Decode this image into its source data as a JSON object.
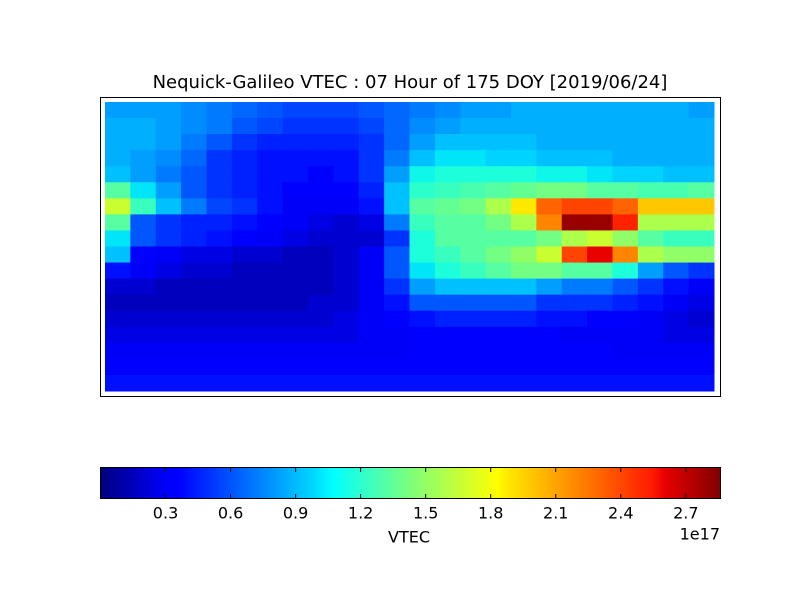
{
  "chart_data": {
    "type": "heatmap",
    "title": "Nequick-Galileo VTEC : 07 Hour of 175 DOY [2019/06/24]",
    "colormap": "jet",
    "values": [
      [
        0.8,
        0.8,
        0.8,
        0.75,
        0.7,
        0.65,
        0.6,
        0.55,
        0.55,
        0.55,
        0.6,
        0.65,
        0.7,
        0.75,
        0.8,
        0.8,
        0.85,
        0.85,
        0.85,
        0.85,
        0.85,
        0.85,
        0.85,
        0.8
      ],
      [
        0.85,
        0.85,
        0.8,
        0.75,
        0.7,
        0.6,
        0.55,
        0.5,
        0.5,
        0.5,
        0.55,
        0.65,
        0.75,
        0.8,
        0.85,
        0.85,
        0.85,
        0.85,
        0.85,
        0.85,
        0.85,
        0.85,
        0.85,
        0.85
      ],
      [
        0.85,
        0.85,
        0.8,
        0.7,
        0.6,
        0.5,
        0.45,
        0.45,
        0.45,
        0.45,
        0.5,
        0.65,
        0.8,
        0.9,
        0.9,
        0.9,
        0.9,
        0.85,
        0.85,
        0.85,
        0.85,
        0.85,
        0.85,
        0.85
      ],
      [
        0.85,
        0.8,
        0.75,
        0.65,
        0.5,
        0.45,
        0.4,
        0.4,
        0.4,
        0.4,
        0.5,
        0.7,
        0.9,
        1.0,
        1.0,
        0.95,
        0.95,
        0.9,
        0.9,
        0.9,
        0.85,
        0.85,
        0.85,
        0.85
      ],
      [
        0.9,
        0.8,
        0.7,
        0.6,
        0.5,
        0.45,
        0.4,
        0.4,
        0.35,
        0.4,
        0.5,
        0.8,
        1.05,
        1.1,
        1.1,
        1.1,
        1.1,
        1.05,
        1.05,
        1.0,
        0.95,
        0.95,
        0.9,
        0.9
      ],
      [
        1.3,
        1.0,
        0.8,
        0.6,
        0.5,
        0.45,
        0.4,
        0.35,
        0.35,
        0.35,
        0.45,
        0.9,
        1.15,
        1.2,
        1.25,
        1.3,
        1.35,
        1.4,
        1.4,
        1.3,
        1.3,
        1.25,
        1.25,
        1.3
      ],
      [
        1.7,
        1.2,
        0.9,
        0.7,
        0.55,
        0.5,
        0.4,
        0.3,
        0.3,
        0.3,
        0.4,
        0.9,
        1.3,
        1.35,
        1.4,
        1.6,
        1.9,
        2.3,
        2.4,
        2.4,
        2.3,
        2.0,
        2.0,
        2.0
      ],
      [
        1.3,
        0.6,
        0.5,
        0.45,
        0.45,
        0.4,
        0.35,
        0.3,
        0.25,
        0.2,
        0.25,
        0.7,
        1.2,
        1.3,
        1.3,
        1.4,
        1.6,
        2.2,
        2.8,
        2.8,
        2.5,
        1.6,
        1.6,
        1.6
      ],
      [
        1.0,
        0.6,
        0.5,
        0.45,
        0.4,
        0.35,
        0.3,
        0.25,
        0.2,
        0.2,
        0.2,
        0.5,
        1.1,
        1.3,
        1.3,
        1.3,
        1.3,
        1.4,
        1.6,
        1.7,
        1.5,
        1.3,
        1.2,
        1.2
      ],
      [
        0.9,
        0.35,
        0.3,
        0.25,
        0.25,
        0.2,
        0.2,
        0.15,
        0.15,
        0.2,
        0.3,
        0.6,
        1.1,
        1.2,
        1.3,
        1.4,
        1.5,
        1.7,
        2.4,
        2.6,
        2.2,
        1.6,
        1.5,
        1.5
      ],
      [
        0.4,
        0.3,
        0.25,
        0.2,
        0.2,
        0.15,
        0.15,
        0.15,
        0.15,
        0.2,
        0.3,
        0.6,
        1.0,
        1.1,
        1.2,
        1.3,
        1.4,
        1.4,
        1.3,
        1.3,
        1.1,
        0.8,
        0.6,
        0.5
      ],
      [
        0.2,
        0.2,
        0.15,
        0.15,
        0.15,
        0.15,
        0.15,
        0.15,
        0.15,
        0.2,
        0.3,
        0.5,
        0.8,
        0.9,
        0.9,
        0.9,
        0.9,
        0.8,
        0.7,
        0.7,
        0.6,
        0.5,
        0.4,
        0.3
      ],
      [
        0.15,
        0.15,
        0.15,
        0.15,
        0.15,
        0.15,
        0.15,
        0.15,
        0.2,
        0.2,
        0.3,
        0.4,
        0.6,
        0.6,
        0.6,
        0.6,
        0.6,
        0.5,
        0.5,
        0.5,
        0.45,
        0.4,
        0.3,
        0.25
      ],
      [
        0.2,
        0.2,
        0.2,
        0.2,
        0.2,
        0.2,
        0.2,
        0.2,
        0.2,
        0.25,
        0.3,
        0.35,
        0.4,
        0.45,
        0.45,
        0.45,
        0.45,
        0.4,
        0.4,
        0.35,
        0.35,
        0.3,
        0.25,
        0.2
      ],
      [
        0.25,
        0.25,
        0.25,
        0.25,
        0.25,
        0.25,
        0.25,
        0.25,
        0.25,
        0.25,
        0.3,
        0.3,
        0.35,
        0.35,
        0.35,
        0.35,
        0.35,
        0.35,
        0.3,
        0.3,
        0.3,
        0.3,
        0.25,
        0.25
      ],
      [
        0.3,
        0.3,
        0.3,
        0.3,
        0.3,
        0.3,
        0.3,
        0.3,
        0.3,
        0.3,
        0.3,
        0.3,
        0.35,
        0.35,
        0.35,
        0.35,
        0.35,
        0.35,
        0.35,
        0.35,
        0.3,
        0.3,
        0.3,
        0.3
      ],
      [
        0.35,
        0.35,
        0.35,
        0.35,
        0.35,
        0.35,
        0.35,
        0.35,
        0.35,
        0.35,
        0.35,
        0.35,
        0.35,
        0.35,
        0.35,
        0.35,
        0.35,
        0.35,
        0.35,
        0.35,
        0.35,
        0.35,
        0.35,
        0.35
      ],
      [
        0.4,
        0.4,
        0.4,
        0.4,
        0.4,
        0.4,
        0.4,
        0.4,
        0.4,
        0.4,
        0.4,
        0.4,
        0.4,
        0.4,
        0.4,
        0.4,
        0.4,
        0.4,
        0.4,
        0.4,
        0.4,
        0.4,
        0.4,
        0.4
      ]
    ],
    "colorbar": {
      "label": "VTEC",
      "offset_label": "1e17",
      "lim": [
        0,
        2.86
      ],
      "ticks": [
        0.3,
        0.6,
        0.9,
        1.2,
        1.5,
        1.8,
        2.1,
        2.4,
        2.7
      ]
    }
  }
}
